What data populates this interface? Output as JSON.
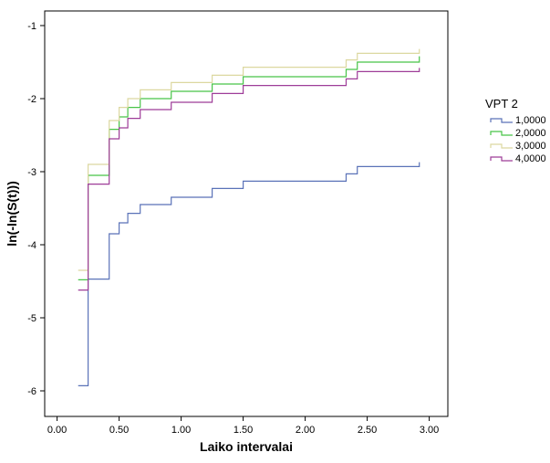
{
  "chart_data": {
    "type": "line",
    "step": "post",
    "title": "",
    "xlabel": "Laiko intervalai",
    "ylabel": "ln(-ln(S(t)))",
    "xlim": [
      -0.1,
      3.15
    ],
    "ylim": [
      -6.35,
      -0.8
    ],
    "xticks": [
      0,
      0.5,
      1,
      1.5,
      2,
      2.5,
      3
    ],
    "xtick_labels": [
      "0.00",
      "0.50",
      "1.00",
      "1.50",
      "2.00",
      "2.50",
      "3.00"
    ],
    "yticks": [
      -6,
      -5,
      -4,
      -3,
      -2,
      -1
    ],
    "ytick_labels": [
      "-6",
      "-5",
      "-4",
      "-3",
      "-2",
      "-1"
    ],
    "grid": false,
    "legend_title": "VPT 2",
    "legend_position": "right",
    "series": [
      {
        "name": "1,0000",
        "color": "#5a72b8",
        "x": [
          0.17,
          0.25,
          0.42,
          0.5,
          0.57,
          0.67,
          0.92,
          1.25,
          1.5,
          2.33,
          2.42,
          2.92
        ],
        "y": [
          -5.93,
          -4.47,
          -3.85,
          -3.7,
          -3.57,
          -3.45,
          -3.35,
          -3.23,
          -3.13,
          -3.03,
          -2.93,
          -2.87
        ],
        "end_x": 2.92
      },
      {
        "name": "2,0000",
        "color": "#48c448",
        "x": [
          0.17,
          0.25,
          0.42,
          0.5,
          0.57,
          0.67,
          0.92,
          1.25,
          1.5,
          2.33,
          2.42,
          2.92
        ],
        "y": [
          -4.48,
          -3.05,
          -2.42,
          -2.25,
          -2.12,
          -2.0,
          -1.9,
          -1.8,
          -1.7,
          -1.6,
          -1.5,
          -1.42
        ],
        "end_x": 2.92
      },
      {
        "name": "3,0000",
        "color": "#dcd8a0",
        "x": [
          0.17,
          0.25,
          0.42,
          0.5,
          0.57,
          0.67,
          0.92,
          1.25,
          1.5,
          2.33,
          2.42,
          2.92
        ],
        "y": [
          -4.35,
          -2.9,
          -2.3,
          -2.12,
          -2.0,
          -1.88,
          -1.78,
          -1.68,
          -1.57,
          -1.47,
          -1.38,
          -1.32
        ],
        "end_x": 2.92
      },
      {
        "name": "4,0000",
        "color": "#9e3c98",
        "x": [
          0.17,
          0.25,
          0.42,
          0.5,
          0.57,
          0.67,
          0.92,
          1.25,
          1.5,
          2.33,
          2.42,
          2.92
        ],
        "y": [
          -4.62,
          -3.17,
          -2.55,
          -2.4,
          -2.27,
          -2.15,
          -2.05,
          -1.93,
          -1.82,
          -1.73,
          -1.63,
          -1.58
        ],
        "end_x": 2.92
      }
    ]
  }
}
